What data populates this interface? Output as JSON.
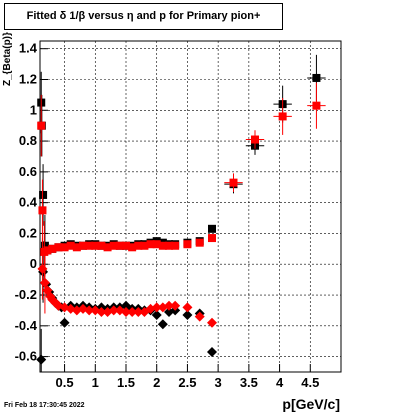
{
  "chart_data": {
    "type": "scatter",
    "title": "Fitted δ 1/β versus η and p for Primary pion+",
    "xlabel": "p[GeV/c]",
    "ylabel": "Z_{Beta(p)}",
    "timestamp": "Fri Feb 18 17:30:45 2022",
    "xlim": [
      0.1,
      5.0
    ],
    "ylim": [
      -0.7,
      1.45
    ],
    "x_ticks": [
      0.5,
      1,
      1.5,
      2,
      2.5,
      3,
      3.5,
      4,
      4.5
    ],
    "x_tick_labels": [
      "0.5",
      "1",
      "1.5",
      "2",
      "2.5",
      "3",
      "3.5",
      "4",
      "4.5"
    ],
    "y_ticks": [
      -0.6,
      -0.4,
      -0.2,
      0,
      0.2,
      0.4,
      0.6,
      0.8,
      1,
      1.2,
      1.4
    ],
    "y_tick_labels": [
      "-0.6",
      "-0.4",
      "-0.2",
      "0",
      "0.2",
      "0.4",
      "0.6",
      "0.8",
      "1",
      "1.2",
      "1.4"
    ],
    "grid": true,
    "series": [
      {
        "color": "#000000",
        "marker": "square",
        "points": [
          {
            "x": 0.12,
            "y": 1.05
          },
          {
            "x": 0.13,
            "y": 0.9
          },
          {
            "x": 0.15,
            "y": 0.45
          },
          {
            "x": 0.18,
            "y": 0.12
          },
          {
            "x": 0.22,
            "y": 0.09
          },
          {
            "x": 0.3,
            "y": 0.1
          },
          {
            "x": 0.4,
            "y": 0.11
          },
          {
            "x": 0.5,
            "y": 0.12
          },
          {
            "x": 0.6,
            "y": 0.13
          },
          {
            "x": 0.7,
            "y": 0.12
          },
          {
            "x": 0.8,
            "y": 0.12
          },
          {
            "x": 0.9,
            "y": 0.13
          },
          {
            "x": 1.0,
            "y": 0.13
          },
          {
            "x": 1.1,
            "y": 0.12
          },
          {
            "x": 1.2,
            "y": 0.12
          },
          {
            "x": 1.3,
            "y": 0.13
          },
          {
            "x": 1.4,
            "y": 0.12
          },
          {
            "x": 1.5,
            "y": 0.12
          },
          {
            "x": 1.6,
            "y": 0.12
          },
          {
            "x": 1.7,
            "y": 0.13
          },
          {
            "x": 1.8,
            "y": 0.13
          },
          {
            "x": 1.9,
            "y": 0.14
          },
          {
            "x": 2.0,
            "y": 0.15
          },
          {
            "x": 2.1,
            "y": 0.14
          },
          {
            "x": 2.2,
            "y": 0.13
          },
          {
            "x": 2.3,
            "y": 0.13
          },
          {
            "x": 2.5,
            "y": 0.14
          },
          {
            "x": 2.7,
            "y": 0.15
          },
          {
            "x": 2.9,
            "y": 0.23
          },
          {
            "x": 3.25,
            "y": 0.52
          },
          {
            "x": 3.6,
            "y": 0.77
          },
          {
            "x": 4.05,
            "y": 1.04
          },
          {
            "x": 4.6,
            "y": 1.21
          }
        ],
        "lower_points": [
          {
            "x": 0.12,
            "y": -0.62
          },
          {
            "x": 0.15,
            "y": -0.05
          },
          {
            "x": 0.2,
            "y": -0.13
          },
          {
            "x": 0.25,
            "y": -0.18
          },
          {
            "x": 0.3,
            "y": -0.22
          },
          {
            "x": 0.35,
            "y": -0.25
          },
          {
            "x": 0.4,
            "y": -0.27
          },
          {
            "x": 0.45,
            "y": -0.28
          },
          {
            "x": 0.5,
            "y": -0.38
          },
          {
            "x": 0.6,
            "y": -0.27
          },
          {
            "x": 0.7,
            "y": -0.28
          },
          {
            "x": 0.8,
            "y": -0.27
          },
          {
            "x": 0.9,
            "y": -0.28
          },
          {
            "x": 1.0,
            "y": -0.29
          },
          {
            "x": 1.1,
            "y": -0.28
          },
          {
            "x": 1.2,
            "y": -0.29
          },
          {
            "x": 1.3,
            "y": -0.28
          },
          {
            "x": 1.4,
            "y": -0.28
          },
          {
            "x": 1.5,
            "y": -0.27
          },
          {
            "x": 1.6,
            "y": -0.29
          },
          {
            "x": 1.7,
            "y": -0.29
          },
          {
            "x": 1.8,
            "y": -0.3
          },
          {
            "x": 1.9,
            "y": -0.3
          },
          {
            "x": 2.0,
            "y": -0.33
          },
          {
            "x": 2.1,
            "y": -0.39
          },
          {
            "x": 2.2,
            "y": -0.31
          },
          {
            "x": 2.3,
            "y": -0.3
          },
          {
            "x": 2.5,
            "y": -0.33
          },
          {
            "x": 2.7,
            "y": -0.32
          },
          {
            "x": 2.9,
            "y": -0.57
          }
        ]
      },
      {
        "color": "#ff0000",
        "marker": "square",
        "points": [
          {
            "x": 0.12,
            "y": 0.9
          },
          {
            "x": 0.14,
            "y": 0.35
          },
          {
            "x": 0.17,
            "y": 0.08
          },
          {
            "x": 0.22,
            "y": 0.09
          },
          {
            "x": 0.3,
            "y": 0.1
          },
          {
            "x": 0.4,
            "y": 0.11
          },
          {
            "x": 0.5,
            "y": 0.11
          },
          {
            "x": 0.6,
            "y": 0.12
          },
          {
            "x": 0.7,
            "y": 0.11
          },
          {
            "x": 0.8,
            "y": 0.12
          },
          {
            "x": 0.9,
            "y": 0.12
          },
          {
            "x": 1.0,
            "y": 0.12
          },
          {
            "x": 1.1,
            "y": 0.12
          },
          {
            "x": 1.2,
            "y": 0.11
          },
          {
            "x": 1.3,
            "y": 0.12
          },
          {
            "x": 1.4,
            "y": 0.12
          },
          {
            "x": 1.5,
            "y": 0.12
          },
          {
            "x": 1.6,
            "y": 0.11
          },
          {
            "x": 1.7,
            "y": 0.12
          },
          {
            "x": 1.8,
            "y": 0.12
          },
          {
            "x": 1.9,
            "y": 0.13
          },
          {
            "x": 2.0,
            "y": 0.13
          },
          {
            "x": 2.1,
            "y": 0.12
          },
          {
            "x": 2.2,
            "y": 0.12
          },
          {
            "x": 2.3,
            "y": 0.12
          },
          {
            "x": 2.5,
            "y": 0.13
          },
          {
            "x": 2.7,
            "y": 0.14
          },
          {
            "x": 2.9,
            "y": 0.17
          },
          {
            "x": 3.25,
            "y": 0.53
          },
          {
            "x": 3.6,
            "y": 0.81
          },
          {
            "x": 4.05,
            "y": 0.96
          },
          {
            "x": 4.6,
            "y": 1.03
          }
        ],
        "lower_points": [
          {
            "x": 0.14,
            "y": -0.03
          },
          {
            "x": 0.18,
            "y": -0.12
          },
          {
            "x": 0.22,
            "y": -0.17
          },
          {
            "x": 0.27,
            "y": -0.21
          },
          {
            "x": 0.3,
            "y": -0.23
          },
          {
            "x": 0.35,
            "y": -0.25
          },
          {
            "x": 0.4,
            "y": -0.27
          },
          {
            "x": 0.5,
            "y": -0.28
          },
          {
            "x": 0.6,
            "y": -0.29
          },
          {
            "x": 0.7,
            "y": -0.3
          },
          {
            "x": 0.8,
            "y": -0.29
          },
          {
            "x": 0.9,
            "y": -0.3
          },
          {
            "x": 1.0,
            "y": -0.3
          },
          {
            "x": 1.1,
            "y": -0.31
          },
          {
            "x": 1.2,
            "y": -0.31
          },
          {
            "x": 1.3,
            "y": -0.3
          },
          {
            "x": 1.4,
            "y": -0.3
          },
          {
            "x": 1.5,
            "y": -0.31
          },
          {
            "x": 1.6,
            "y": -0.31
          },
          {
            "x": 1.7,
            "y": -0.31
          },
          {
            "x": 1.8,
            "y": -0.31
          },
          {
            "x": 1.9,
            "y": -0.29
          },
          {
            "x": 2.0,
            "y": -0.28
          },
          {
            "x": 2.1,
            "y": -0.28
          },
          {
            "x": 2.2,
            "y": -0.27
          },
          {
            "x": 2.3,
            "y": -0.27
          },
          {
            "x": 2.5,
            "y": -0.28
          },
          {
            "x": 2.7,
            "y": -0.34
          },
          {
            "x": 2.9,
            "y": -0.38
          }
        ]
      }
    ]
  }
}
